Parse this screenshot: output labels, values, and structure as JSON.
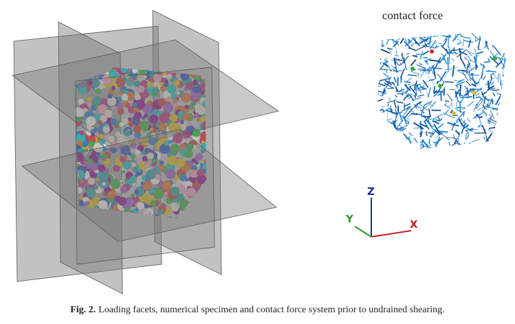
{
  "figure": {
    "inset_title": "contact force",
    "axes": {
      "z": "Z",
      "y": "Y",
      "x": "X"
    }
  },
  "caption": {
    "label": "Fig. 2.",
    "text": "Loading facets, numerical specimen and contact force system prior to undrained shearing."
  }
}
